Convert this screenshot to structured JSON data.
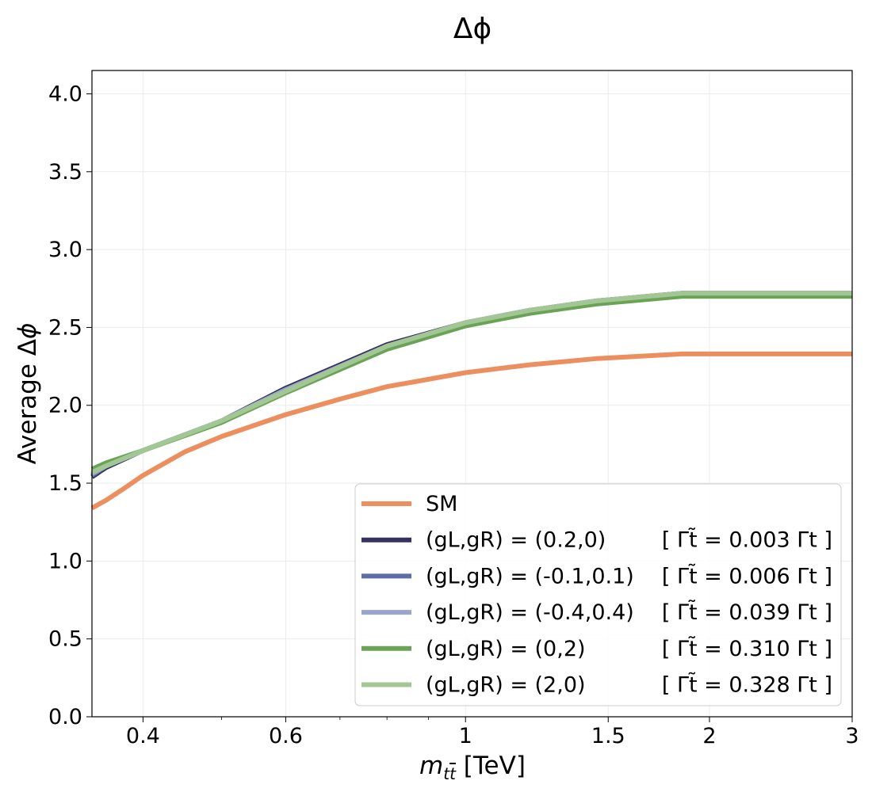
{
  "chart_data": {
    "type": "line",
    "title": "Δϕ",
    "xlabel": "m_{t̅t}  [TeV]",
    "ylabel": "Average Δϕ",
    "xscale": "log",
    "xlim": [
      0.346,
      3.0
    ],
    "ylim": [
      0.0,
      4.15
    ],
    "xticks": [
      0.4,
      0.6,
      1,
      1.5,
      2,
      3
    ],
    "xtick_labels": [
      "0.4",
      "0.6",
      "1",
      "1.5",
      "2",
      "3"
    ],
    "yticks": [
      0.0,
      0.5,
      1.0,
      1.5,
      2.0,
      2.5,
      3.0,
      3.5,
      4.0
    ],
    "ytick_labels": [
      "0.0",
      "0.5",
      "1.0",
      "1.5",
      "2.0",
      "2.5",
      "3.0",
      "3.5",
      "4.0"
    ],
    "grid": true,
    "legend_position": "bottom-right",
    "series": [
      {
        "name": "SM",
        "label_main": "SM",
        "label_width": "",
        "color": "#ec8e5e",
        "x": [
          0.346,
          0.36,
          0.38,
          0.4,
          0.45,
          0.5,
          0.6,
          0.7,
          0.8,
          1.0,
          1.2,
          1.45,
          1.85,
          2.0,
          3.0
        ],
        "y": [
          1.34,
          1.39,
          1.47,
          1.55,
          1.7,
          1.8,
          1.94,
          2.04,
          2.12,
          2.21,
          2.26,
          2.3,
          2.33,
          2.33,
          2.33
        ]
      },
      {
        "name": "(g_L,g_R) = (0.2,0)",
        "label_main": "(gL,gR) = (0.2,0)",
        "label_width": "[ Γt̃ = 0.003 Γt ]",
        "color": "#35325f",
        "x": [
          0.346,
          0.36,
          0.4,
          0.5,
          0.6,
          0.8,
          1.0,
          1.2,
          1.45,
          1.85,
          2.0,
          3.0
        ],
        "y": [
          1.54,
          1.6,
          1.71,
          1.9,
          2.11,
          2.39,
          2.53,
          2.61,
          2.67,
          2.72,
          2.72,
          2.72
        ]
      },
      {
        "name": "(g_L,g_R) = (-0.1,0.1)",
        "label_main": "(gL,gR) = (-0.1,0.1)",
        "label_width": "[ Γt̃ = 0.006 Γt ]",
        "color": "#5b6ea5",
        "x": [
          0.346,
          0.36,
          0.4,
          0.5,
          0.6,
          0.8,
          1.0,
          1.2,
          1.45,
          1.85,
          2.0,
          3.0
        ],
        "y": [
          1.55,
          1.61,
          1.71,
          1.9,
          2.1,
          2.38,
          2.53,
          2.61,
          2.67,
          2.72,
          2.72,
          2.72
        ]
      },
      {
        "name": "(g_L,g_R) = (-0.4,0.4)",
        "label_main": "(gL,gR) = (-0.4,0.4)",
        "label_width": "[ Γt̃ = 0.039 Γt ]",
        "color": "#9aa5c9",
        "x": [
          0.346,
          0.36,
          0.4,
          0.5,
          0.6,
          0.8,
          1.0,
          1.2,
          1.45,
          1.85,
          2.0,
          3.0
        ],
        "y": [
          1.56,
          1.61,
          1.71,
          1.9,
          2.1,
          2.38,
          2.53,
          2.61,
          2.67,
          2.72,
          2.72,
          2.72
        ]
      },
      {
        "name": "(g_L,g_R) = (0,2)",
        "label_main": "(gL,gR) = (0,2)",
        "label_width": "[ Γt̃ = 0.310 Γt ]",
        "color": "#6aa355",
        "x": [
          0.346,
          0.36,
          0.4,
          0.5,
          0.6,
          0.8,
          1.0,
          1.2,
          1.45,
          1.85,
          2.0,
          3.0
        ],
        "y": [
          1.59,
          1.63,
          1.71,
          1.89,
          2.08,
          2.36,
          2.51,
          2.59,
          2.65,
          2.7,
          2.7,
          2.7
        ]
      },
      {
        "name": "(g_L,g_R) = (2,0)",
        "label_main": "(gL,gR) = (2,0)",
        "label_width": "[ Γt̃ = 0.328 Γt ]",
        "color": "#a2c795",
        "x": [
          0.346,
          0.36,
          0.4,
          0.5,
          0.6,
          0.8,
          1.0,
          1.2,
          1.45,
          1.85,
          2.0,
          3.0
        ],
        "y": [
          1.57,
          1.61,
          1.71,
          1.9,
          2.09,
          2.38,
          2.53,
          2.61,
          2.67,
          2.72,
          2.72,
          2.72
        ]
      }
    ]
  }
}
